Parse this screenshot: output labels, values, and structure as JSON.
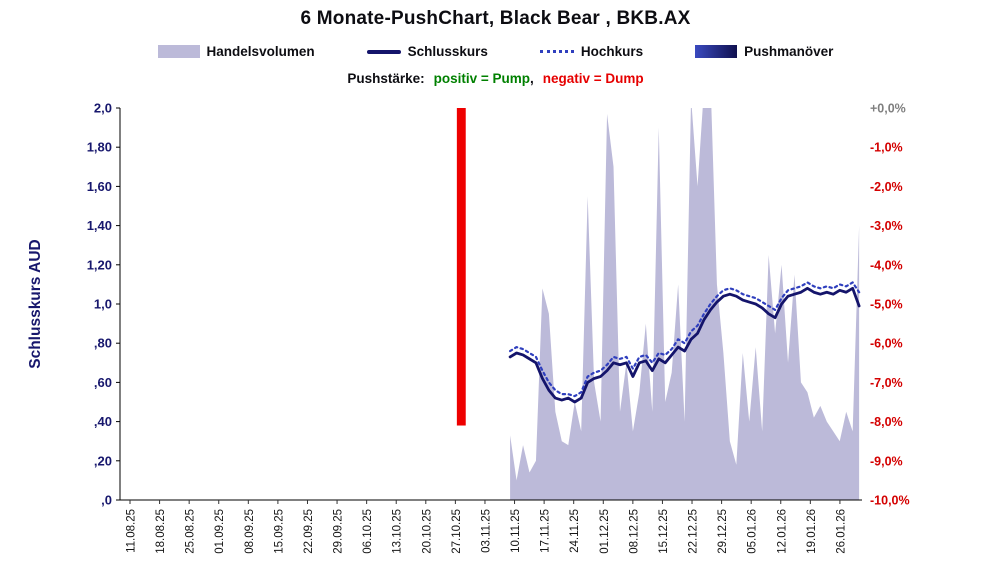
{
  "header": {
    "title": "6 Monate-PushChart, Black Bear , BKB.AX"
  },
  "legend": {
    "items": [
      {
        "label": "Handelsvolumen",
        "swatch": "area",
        "color": "#bcbad9"
      },
      {
        "label": "Schlusskurs",
        "swatch": "line",
        "color": "#14146b"
      },
      {
        "label": "Hochkurs",
        "swatch": "dotted",
        "color": "#2f3fbe"
      },
      {
        "label": "Pushmanöver",
        "swatch": "bar",
        "color": "#3a4abf",
        "color2": "#10104f"
      }
    ]
  },
  "subtitle": {
    "prefix": "Pushstärke:",
    "pump": "positiv = Pump",
    "separator": ",",
    "dump": "negativ = Dump",
    "pump_color": "#008000",
    "dump_color": "#e60000"
  },
  "chart_data": {
    "type": "line",
    "title": "6 Monate-PushChart, Black Bear , BKB.AX",
    "ylabel_left": "Schlusskurs AUD",
    "grid": false,
    "legend_position": "top",
    "y_left": {
      "min": 0,
      "max": 2,
      "tick_labels": [
        "2,0",
        "1,80",
        "1,60",
        "1,40",
        "1,20",
        "1,0",
        ",80",
        ",60",
        ",40",
        ",20",
        ",0"
      ]
    },
    "y_right": {
      "tick_labels": [
        "+0,0%",
        "-1,0%",
        "-2,0%",
        "-3,0%",
        "-4,0%",
        "-5,0%",
        "-6,0%",
        "-7,0%",
        "-8,0%",
        "-9,0%",
        "-10,0%"
      ],
      "zero_color": "#7f7f7f",
      "color": "#d40000"
    },
    "x_tick_labels": [
      "11.08.25",
      "18.08.25",
      "25.08.25",
      "01.09.25",
      "08.09.25",
      "15.09.25",
      "22.09.25",
      "29.09.25",
      "06.10.25",
      "13.10.25",
      "20.10.25",
      "27.10.25",
      "03.11.25",
      "10.11.25",
      "17.11.25",
      "24.11.25",
      "01.12.25",
      "08.12.25",
      "15.12.25",
      "22.12.25",
      "29.12.25",
      "05.01.26",
      "12.01.26",
      "19.01.26",
      "26.01.26"
    ],
    "x_domain": [
      -0.35,
      24.75
    ],
    "series_x": {
      "start": 12.85,
      "step": 0.2185
    },
    "series": [
      {
        "name": "Handelsvolumen",
        "kind": "area",
        "color": "#bcbad9",
        "values": [
          0.33,
          0.1,
          0.28,
          0.14,
          0.2,
          1.08,
          0.95,
          0.45,
          0.3,
          0.28,
          0.5,
          0.35,
          1.55,
          0.6,
          0.4,
          1.97,
          1.7,
          0.45,
          0.7,
          0.35,
          0.55,
          0.9,
          0.45,
          1.9,
          0.5,
          0.65,
          1.1,
          0.4,
          2.05,
          1.6,
          2.1,
          2.15,
          1.1,
          0.75,
          0.3,
          0.18,
          0.75,
          0.4,
          0.78,
          0.35,
          1.25,
          0.85,
          1.2,
          0.7,
          1.15,
          0.6,
          0.55,
          0.42,
          0.48,
          0.4,
          0.35,
          0.3,
          0.45,
          0.35,
          1.4
        ]
      },
      {
        "name": "Schlusskurs",
        "kind": "line",
        "color": "#14146b",
        "values": [
          0.73,
          0.75,
          0.74,
          0.72,
          0.7,
          0.62,
          0.56,
          0.52,
          0.51,
          0.52,
          0.5,
          0.52,
          0.6,
          0.62,
          0.63,
          0.66,
          0.7,
          0.69,
          0.7,
          0.63,
          0.7,
          0.71,
          0.66,
          0.72,
          0.7,
          0.74,
          0.78,
          0.76,
          0.82,
          0.85,
          0.92,
          0.97,
          1.01,
          1.04,
          1.05,
          1.04,
          1.02,
          1.01,
          1.0,
          0.98,
          0.95,
          0.93,
          1.0,
          1.04,
          1.05,
          1.06,
          1.08,
          1.06,
          1.05,
          1.06,
          1.05,
          1.07,
          1.06,
          1.08,
          0.99
        ]
      },
      {
        "name": "Hochkurs",
        "kind": "dotted",
        "color": "#2f3fbe",
        "values": [
          0.76,
          0.78,
          0.77,
          0.75,
          0.73,
          0.66,
          0.6,
          0.56,
          0.54,
          0.54,
          0.53,
          0.55,
          0.63,
          0.65,
          0.66,
          0.69,
          0.73,
          0.72,
          0.73,
          0.67,
          0.73,
          0.74,
          0.7,
          0.75,
          0.74,
          0.77,
          0.82,
          0.8,
          0.86,
          0.89,
          0.95,
          1.0,
          1.04,
          1.07,
          1.08,
          1.07,
          1.05,
          1.04,
          1.03,
          1.01,
          0.99,
          0.97,
          1.03,
          1.07,
          1.08,
          1.09,
          1.11,
          1.09,
          1.08,
          1.09,
          1.08,
          1.1,
          1.09,
          1.11,
          1.06
        ]
      }
    ],
    "push_events": [
      {
        "x": 11.2,
        "width": 0.3,
        "from": 0.38,
        "to": 2.0,
        "color": "#ee0000",
        "direction": "dump"
      }
    ]
  }
}
